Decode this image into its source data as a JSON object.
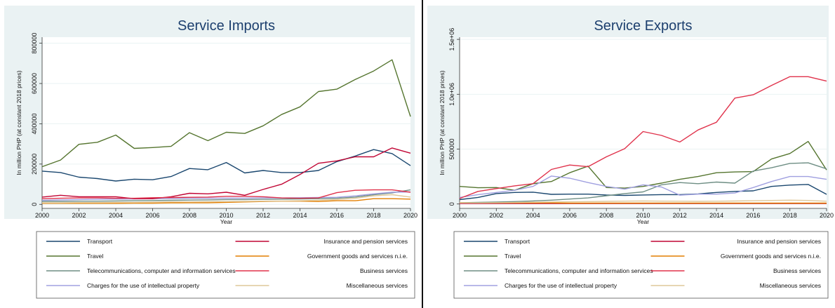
{
  "colors": {
    "Transport": "#1a476f",
    "Travel": "#55752f",
    "Telecommunications, computer and information services": "#6e8e84",
    "Charges for the use of intellectual property": "#a0a0e0",
    "Insurance and pension services": "#c10534",
    "Government goods and services n.i.e.": "#e37e00",
    "Business services": "#e0324b",
    "Miscellaneous services": "#dfc89a"
  },
  "chart_data": [
    {
      "type": "line",
      "title": "Service Imports",
      "xlabel": "Year",
      "ylabel": "In million PHP (at constant 2018 prices)",
      "xlim": [
        2000,
        2020
      ],
      "ylim": [
        -20000,
        830000
      ],
      "xticks": [
        "2000",
        "2002",
        "2004",
        "2006",
        "2008",
        "2010",
        "2012",
        "2014",
        "2016",
        "2018",
        "2020"
      ],
      "yticks": [
        {
          "value": 0,
          "label": "0"
        },
        {
          "value": 200000,
          "label": "200000"
        },
        {
          "value": 400000,
          "label": "400000"
        },
        {
          "value": 600000,
          "label": "600000"
        },
        {
          "value": 800000,
          "label": "800000"
        }
      ],
      "grid": true,
      "legend": "bottom",
      "x": [
        2000,
        2001,
        2002,
        2003,
        2004,
        2005,
        2006,
        2007,
        2008,
        2009,
        2010,
        2011,
        2012,
        2013,
        2014,
        2015,
        2016,
        2017,
        2018,
        2019,
        2020
      ],
      "series": [
        {
          "name": "Transport",
          "values": [
            165000,
            158000,
            135000,
            128000,
            116000,
            125000,
            122000,
            138000,
            178000,
            172000,
            208000,
            156000,
            168000,
            158000,
            158000,
            168000,
            212000,
            240000,
            272000,
            252000,
            192000
          ]
        },
        {
          "name": "Travel",
          "values": [
            187000,
            220000,
            298000,
            308000,
            344000,
            278000,
            282000,
            288000,
            356000,
            316000,
            358000,
            352000,
            390000,
            446000,
            484000,
            560000,
            572000,
            620000,
            662000,
            718000,
            436000
          ]
        },
        {
          "name": "Telecommunications, computer and information services",
          "values": [
            15000,
            15000,
            16000,
            16000,
            17000,
            18000,
            19000,
            20000,
            21000,
            22000,
            24000,
            24000,
            25000,
            26000,
            27000,
            28000,
            30000,
            36000,
            48000,
            57000,
            72000
          ]
        },
        {
          "name": "Charges for the use of intellectual property",
          "values": [
            20000,
            22000,
            24000,
            25000,
            26000,
            27000,
            28000,
            29000,
            30000,
            30000,
            31000,
            31000,
            32000,
            32000,
            33000,
            34000,
            35000,
            42000,
            52000,
            60000,
            62000
          ]
        },
        {
          "name": "Insurance and pension services",
          "values": [
            36000,
            45000,
            38000,
            38000,
            38000,
            28000,
            28000,
            38000,
            55000,
            52000,
            60000,
            45000,
            74000,
            100000,
            148000,
            204000,
            216000,
            236000,
            236000,
            280000,
            254000
          ]
        },
        {
          "name": "Government goods and services n.i.e.",
          "values": [
            5000,
            5000,
            5000,
            5000,
            5000,
            6000,
            6000,
            7000,
            8000,
            8000,
            10000,
            12000,
            14000,
            16000,
            16000,
            14000,
            18000,
            18000,
            28000,
            28000,
            26000
          ]
        },
        {
          "name": "Business services",
          "values": [
            28000,
            30000,
            32000,
            32000,
            30000,
            30000,
            33000,
            34000,
            35000,
            36000,
            40000,
            40000,
            38000,
            32000,
            30000,
            32000,
            58000,
            70000,
            72000,
            72000,
            60000
          ]
        },
        {
          "name": "Miscellaneous services",
          "values": [
            8000,
            8000,
            9000,
            9000,
            10000,
            10000,
            11000,
            12000,
            12000,
            13000,
            14000,
            15000,
            16000,
            17000,
            18000,
            20000,
            24000,
            30000,
            42000,
            48000,
            36000
          ]
        }
      ]
    },
    {
      "type": "line",
      "title": "Service Exports",
      "xlabel": "Year",
      "ylabel": "In million PHP (at constant 2018 prices)",
      "xlim": [
        2000,
        2020
      ],
      "ylim": [
        -40000,
        1520000
      ],
      "xticks": [
        "2000",
        "2002",
        "2004",
        "2006",
        "2008",
        "2010",
        "2012",
        "2014",
        "2016",
        "2018",
        "2020"
      ],
      "yticks": [
        {
          "value": 0,
          "label": "0"
        },
        {
          "value": 500000,
          "label": "500000"
        },
        {
          "value": 1000000,
          "label": "1.0e+06"
        },
        {
          "value": 1500000,
          "label": "1.5e+06"
        }
      ],
      "grid": true,
      "legend": "bottom",
      "x": [
        2000,
        2001,
        2002,
        2003,
        2004,
        2005,
        2006,
        2007,
        2008,
        2009,
        2010,
        2011,
        2012,
        2013,
        2014,
        2015,
        2016,
        2017,
        2018,
        2019,
        2020
      ],
      "series": [
        {
          "name": "Transport",
          "values": [
            40000,
            60000,
            95000,
            105000,
            108000,
            88000,
            90000,
            90000,
            82000,
            78000,
            82000,
            85000,
            85000,
            92000,
            105000,
            115000,
            120000,
            160000,
            172000,
            178000,
            88000
          ]
        },
        {
          "name": "Travel",
          "values": [
            160000,
            148000,
            150000,
            125000,
            185000,
            205000,
            285000,
            345000,
            150000,
            145000,
            160000,
            190000,
            225000,
            250000,
            285000,
            292000,
            295000,
            410000,
            460000,
            570000,
            310000
          ]
        },
        {
          "name": "Telecommunications, computer and information services",
          "values": [
            12000,
            15000,
            18000,
            22000,
            28000,
            35000,
            45000,
            55000,
            75000,
            95000,
            110000,
            175000,
            195000,
            185000,
            200000,
            190000,
            300000,
            330000,
            370000,
            375000,
            320000
          ]
        },
        {
          "name": "Charges for the use of intellectual property",
          "values": [
            60000,
            85000,
            105000,
            125000,
            160000,
            255000,
            235000,
            195000,
            160000,
            135000,
            175000,
            155000,
            80000,
            90000,
            90000,
            100000,
            150000,
            205000,
            250000,
            250000,
            225000
          ]
        },
        {
          "name": "Insurance and pension services",
          "values": [
            5000,
            5000,
            5000,
            5000,
            5000,
            5000,
            5000,
            5000,
            5000,
            5000,
            5000,
            5000,
            5000,
            5000,
            5000,
            5000,
            5000,
            5000,
            5000,
            5000,
            5000
          ]
        },
        {
          "name": "Government goods and services n.i.e.",
          "values": [
            12000,
            10000,
            10000,
            10000,
            10000,
            10000,
            8000,
            8000,
            8000,
            8000,
            8000,
            8000,
            8000,
            8000,
            8000,
            8000,
            8000,
            8000,
            8000,
            8000,
            8000
          ]
        },
        {
          "name": "Business services",
          "values": [
            50000,
            115000,
            140000,
            165000,
            185000,
            315000,
            355000,
            340000,
            430000,
            505000,
            660000,
            625000,
            565000,
            675000,
            745000,
            965000,
            995000,
            1080000,
            1160000,
            1160000,
            1120000
          ]
        },
        {
          "name": "Miscellaneous services",
          "values": [
            10000,
            10000,
            12000,
            14000,
            16000,
            18000,
            20000,
            22000,
            24000,
            26000,
            28000,
            26000,
            25000,
            24000,
            25000,
            27000,
            30000,
            32000,
            35000,
            32000,
            25000
          ]
        }
      ]
    }
  ]
}
